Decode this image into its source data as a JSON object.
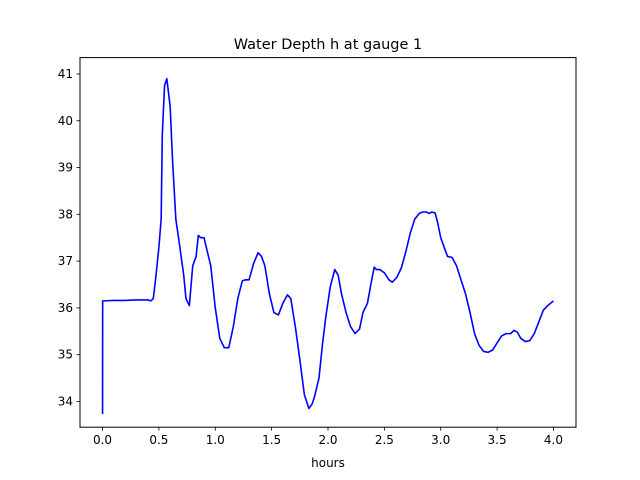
{
  "chart_data": {
    "type": "line",
    "title": "Water Depth h at gauge 1",
    "xlabel": "hours",
    "ylabel": "",
    "xlim": [
      -0.2,
      4.2
    ],
    "ylim": [
      33.45,
      41.35
    ],
    "xticks": [
      0.0,
      0.5,
      1.0,
      1.5,
      2.0,
      2.5,
      3.0,
      3.5,
      4.0
    ],
    "xtick_labels": [
      "0.0",
      "0.5",
      "1.0",
      "1.5",
      "2.0",
      "2.5",
      "3.0",
      "3.5",
      "4.0"
    ],
    "yticks": [
      34,
      35,
      36,
      37,
      38,
      39,
      40,
      41
    ],
    "ytick_labels": [
      "34",
      "35",
      "36",
      "37",
      "38",
      "39",
      "40",
      "41"
    ],
    "grid": false,
    "series": [
      {
        "color": "#0000ff",
        "x": [
          0.0,
          0.001,
          0.01,
          0.1,
          0.2,
          0.3,
          0.4,
          0.43,
          0.45,
          0.47,
          0.5,
          0.52,
          0.53,
          0.55,
          0.57,
          0.6,
          0.62,
          0.65,
          0.68,
          0.72,
          0.74,
          0.77,
          0.8,
          0.83,
          0.85,
          0.87,
          0.9,
          0.93,
          0.96,
          1.0,
          1.04,
          1.08,
          1.12,
          1.16,
          1.2,
          1.24,
          1.27,
          1.3,
          1.34,
          1.38,
          1.41,
          1.44,
          1.48,
          1.52,
          1.56,
          1.6,
          1.64,
          1.67,
          1.71,
          1.75,
          1.79,
          1.83,
          1.86,
          1.88,
          1.92,
          1.95,
          1.98,
          2.02,
          2.06,
          2.09,
          2.12,
          2.16,
          2.2,
          2.24,
          2.28,
          2.31,
          2.35,
          2.38,
          2.41,
          2.43,
          2.46,
          2.5,
          2.54,
          2.57,
          2.61,
          2.65,
          2.69,
          2.73,
          2.77,
          2.81,
          2.84,
          2.87,
          2.9,
          2.92,
          2.95,
          2.97,
          3.0,
          3.03,
          3.06,
          3.1,
          3.14,
          3.18,
          3.22,
          3.26,
          3.3,
          3.34,
          3.38,
          3.42,
          3.46,
          3.5,
          3.54,
          3.58,
          3.62,
          3.65,
          3.68,
          3.71,
          3.75,
          3.79,
          3.83,
          3.87,
          3.91,
          3.95,
          4.0
        ],
        "y": [
          33.73,
          36.15,
          36.15,
          36.16,
          36.16,
          36.17,
          36.17,
          36.15,
          36.2,
          36.6,
          37.3,
          37.9,
          39.7,
          40.75,
          40.9,
          40.3,
          39.2,
          37.9,
          37.4,
          36.7,
          36.2,
          36.05,
          36.9,
          37.1,
          37.55,
          37.5,
          37.5,
          37.2,
          36.9,
          36.0,
          35.35,
          35.15,
          35.15,
          35.6,
          36.2,
          36.58,
          36.6,
          36.6,
          36.95,
          37.18,
          37.1,
          36.9,
          36.3,
          35.9,
          35.85,
          36.1,
          36.28,
          36.2,
          35.6,
          34.9,
          34.15,
          33.85,
          33.95,
          34.1,
          34.5,
          35.2,
          35.8,
          36.45,
          36.82,
          36.7,
          36.3,
          35.9,
          35.6,
          35.45,
          35.55,
          35.9,
          36.1,
          36.5,
          36.87,
          36.82,
          36.82,
          36.75,
          36.6,
          36.55,
          36.65,
          36.85,
          37.2,
          37.6,
          37.9,
          38.02,
          38.05,
          38.05,
          38.02,
          38.05,
          38.03,
          37.85,
          37.5,
          37.3,
          37.1,
          37.08,
          36.9,
          36.6,
          36.3,
          35.9,
          35.45,
          35.2,
          35.07,
          35.05,
          35.1,
          35.25,
          35.4,
          35.45,
          35.45,
          35.52,
          35.48,
          35.35,
          35.28,
          35.3,
          35.45,
          35.7,
          35.95,
          36.05,
          36.15
        ]
      }
    ]
  }
}
